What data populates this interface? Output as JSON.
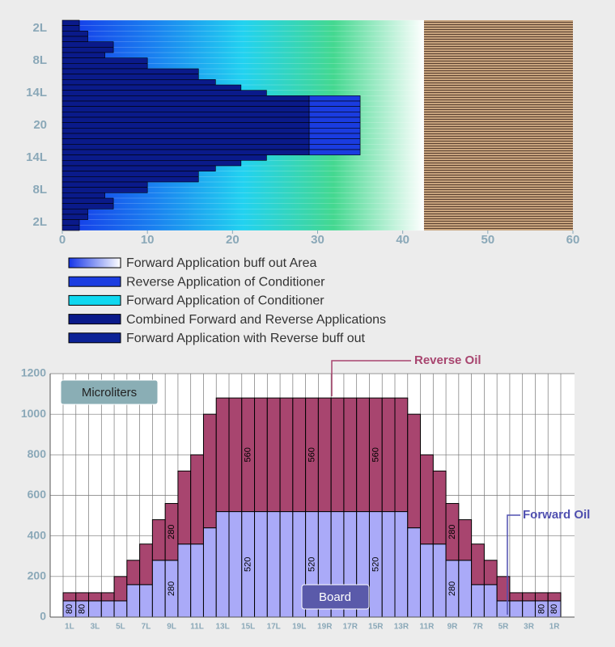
{
  "chart_data": [
    {
      "type": "lane",
      "xlim": [
        0,
        60
      ],
      "xticks": [
        0,
        10,
        20,
        30,
        40,
        50,
        60
      ],
      "categories": [
        null,
        "2L",
        null,
        null,
        null,
        null,
        null,
        "8L",
        null,
        null,
        null,
        null,
        null,
        "14L",
        null,
        null,
        null,
        null,
        null,
        "20",
        null,
        null,
        null,
        null,
        null,
        "14L",
        null,
        null,
        null,
        null,
        null,
        "8L",
        null,
        null,
        null,
        null,
        null,
        "2L",
        null
      ],
      "values": [
        2,
        2,
        3,
        3,
        6,
        6,
        5,
        10,
        10,
        16,
        16,
        18,
        21,
        24,
        29,
        29,
        29,
        29,
        29,
        29,
        29,
        29,
        29,
        29,
        29,
        24,
        21,
        18,
        16,
        16,
        10,
        10,
        5,
        6,
        6,
        3,
        3,
        2,
        2
      ],
      "reverse": [
        null,
        null,
        null,
        null,
        null,
        null,
        null,
        null,
        null,
        null,
        null,
        null,
        null,
        null,
        35,
        35,
        35,
        35,
        35,
        35,
        35,
        35,
        35,
        35,
        35,
        null,
        null,
        null,
        null,
        null,
        null,
        null,
        null,
        null,
        null,
        null,
        null,
        null,
        null
      ],
      "oil_end": 42.5,
      "gradient": [
        "#1535e8",
        "#1a80f0",
        "#22d2f0",
        "#44d890",
        "#ffffff"
      ],
      "combined_color": "#0a1a8a",
      "reverse_color": "#1a3ce0",
      "lane_color": "#c8a47e",
      "legend": [
        {
          "name": "Forward Application buff out Area",
          "color": [
            "#1535e8",
            "#ffffff"
          ]
        },
        {
          "name": "Reverse Application of Conditioner",
          "color": "#1a3ce0"
        },
        {
          "name": "Forward Application of Conditioner",
          "color": "#10d8f0"
        },
        {
          "name": "Combined Forward and Reverse Applications",
          "color": "#0a1a8a"
        },
        {
          "name": "Forward Application with Reverse buff out",
          "color": "#0c2296"
        }
      ]
    },
    {
      "type": "stacked_bar",
      "categories": [
        "1L",
        null,
        "3L",
        null,
        "5L",
        null,
        "7L",
        null,
        "9L",
        null,
        "11L",
        null,
        "13L",
        null,
        "15L",
        null,
        "17L",
        null,
        "19L",
        null,
        "19R",
        null,
        "17R",
        null,
        "15R",
        null,
        "13R",
        null,
        "11R",
        null,
        "9R",
        null,
        "7R",
        null,
        "5R",
        null,
        "3R",
        null,
        "1R"
      ],
      "series": [
        {
          "name": "Forward Oil",
          "color": "#aaaaf8",
          "values": [
            80,
            80,
            80,
            80,
            80,
            160,
            160,
            280,
            280,
            360,
            360,
            440,
            520,
            520,
            520,
            520,
            520,
            520,
            520,
            520,
            520,
            520,
            520,
            520,
            520,
            520,
            520,
            440,
            360,
            360,
            280,
            280,
            160,
            160,
            80,
            80,
            80,
            80,
            80
          ],
          "value_labels": [
            "80",
            "80",
            null,
            null,
            null,
            null,
            null,
            null,
            "280",
            null,
            null,
            null,
            null,
            null,
            "520",
            null,
            null,
            null,
            null,
            "520",
            null,
            null,
            null,
            null,
            "520",
            null,
            null,
            null,
            null,
            null,
            "280",
            null,
            null,
            null,
            null,
            null,
            null,
            "80",
            "80"
          ]
        },
        {
          "name": "Reverse Oil",
          "color": "#a8456f",
          "values": [
            40,
            40,
            40,
            40,
            120,
            120,
            200,
            200,
            280,
            360,
            440,
            560,
            560,
            560,
            560,
            560,
            560,
            560,
            560,
            560,
            560,
            560,
            560,
            560,
            560,
            560,
            560,
            560,
            440,
            360,
            280,
            200,
            200,
            120,
            120,
            40,
            40,
            40,
            40
          ],
          "value_labels": [
            null,
            null,
            null,
            null,
            null,
            null,
            null,
            null,
            "280",
            null,
            null,
            null,
            null,
            null,
            "560",
            null,
            null,
            null,
            null,
            "560",
            null,
            null,
            null,
            null,
            "560",
            null,
            null,
            null,
            null,
            null,
            "280",
            null,
            null,
            null,
            null,
            null,
            null,
            null,
            null
          ]
        }
      ],
      "ylim": [
        0,
        1200
      ],
      "yticks": [
        0,
        200,
        400,
        600,
        800,
        1000,
        1200
      ],
      "grid": true,
      "ylabel": "Microliters",
      "xlabel": "Board"
    }
  ]
}
